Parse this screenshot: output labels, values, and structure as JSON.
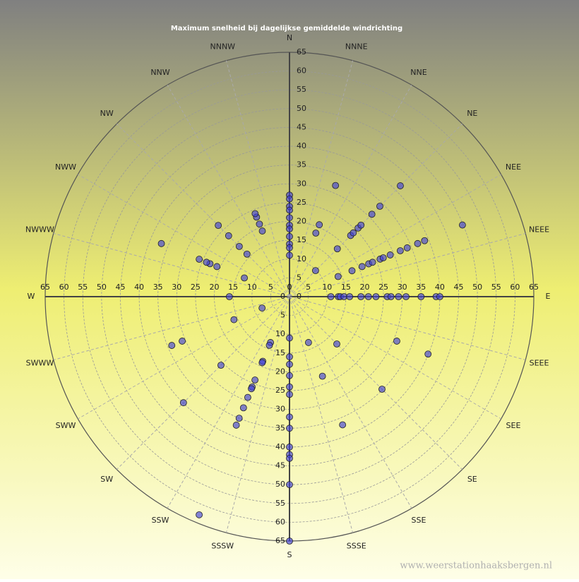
{
  "chart_data": {
    "type": "polar-scatter",
    "title": "Maximum  snelheid  bij  dagelijkse  gemiddelde  windrichting",
    "watermark": "www.weerstationhaaksbergen.nl",
    "directions": [
      "N",
      "NNNE",
      "NNE",
      "NE",
      "NEE",
      "NEEE",
      "E",
      "SEEE",
      "SEE",
      "SE",
      "SSE",
      "SSSE",
      "S",
      "SSSW",
      "SSW",
      "SW",
      "SWW",
      "SWWW",
      "W",
      "NWWW",
      "NWW",
      "NW",
      "NNW",
      "NNNW"
    ],
    "rlim": [
      0,
      65
    ],
    "rticks": [
      0,
      5,
      10,
      15,
      20,
      25,
      30,
      35,
      40,
      45,
      50,
      55,
      60,
      65
    ],
    "grid": true,
    "color": "#4040d8",
    "x": [
      0,
      0,
      0,
      0,
      0,
      0,
      0,
      0,
      0,
      0,
      0,
      90,
      90,
      90,
      90,
      90,
      90,
      90,
      90,
      90,
      90,
      90,
      90,
      90,
      90,
      90,
      180,
      180,
      180,
      180,
      180,
      180,
      180,
      180,
      180,
      180,
      180,
      180,
      180,
      270,
      22.5,
      22.5,
      22.5,
      45,
      45,
      67.5,
      67.5,
      45,
      45,
      45,
      45,
      45,
      45,
      45,
      67.5,
      67.5,
      67.5,
      67.5,
      67.5,
      67.5,
      67.5,
      67.5,
      67.5,
      67.5,
      67.5,
      157.5,
      135,
      157.5,
      135,
      112.5,
      112.5,
      157.5,
      247.5,
      247.5,
      202.5,
      202.5,
      202.5,
      202.5,
      202.5,
      202.5,
      202.5,
      202.5,
      202.5,
      202.5,
      202.5,
      225,
      247.5,
      247.5,
      225,
      202.5,
      292.5,
      315,
      315,
      315,
      315,
      337.5,
      337.5,
      337.5,
      337.5,
      292.5,
      292.5,
      292.5,
      292.5,
      292.5
    ],
    "values": [
      27,
      26,
      24,
      23,
      21,
      19,
      18,
      16,
      14,
      13,
      11,
      11,
      13,
      13.5,
      14.5,
      16,
      19,
      21,
      23,
      26,
      27,
      29,
      31,
      35,
      39,
      40,
      11,
      16,
      18,
      21,
      24,
      26,
      32,
      35,
      40,
      42,
      43,
      50,
      65,
      16,
      32,
      18.3,
      20.7,
      18,
      9.8,
      14,
      18,
      23,
      24,
      25.8,
      26.9,
      31,
      34,
      41.7,
      20.9,
      22.8,
      23.9,
      26.1,
      27,
      29,
      31.9,
      33.9,
      36.9,
      38.9,
      49.8,
      13.2,
      17.8,
      22.9,
      34.8,
      30.9,
      39.9,
      36.9,
      7.9,
      16,
      13.2,
      14,
      18.6,
      19,
      24,
      26,
      26.5,
      29,
      32,
      35,
      37,
      25.8,
      30.9,
      33.9,
      39.9,
      62.8,
      13,
      16,
      18.9,
      22.9,
      26.8,
      18.9,
      20.9,
      22.9,
      23.9,
      20.9,
      22.9,
      23.9,
      26,
      36.9
    ]
  }
}
